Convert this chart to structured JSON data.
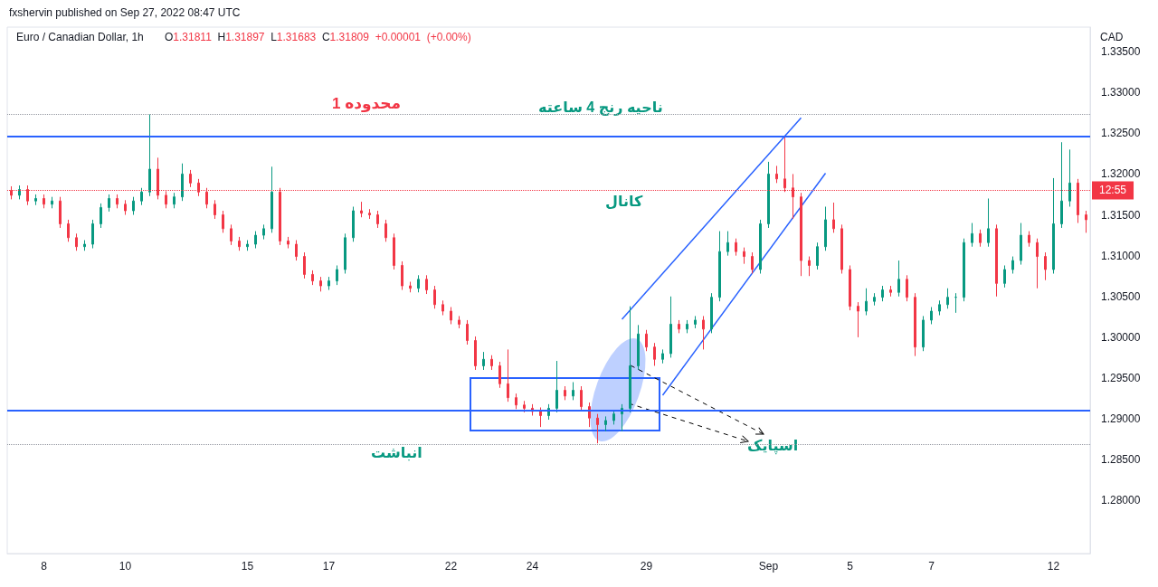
{
  "chart_data": {
    "type": "candlestick",
    "title": "Euro / Canadian Dollar, 1h",
    "subtitle": "O1.31811 H1.31897 L1.31683 C1.31809 +0.00001 (+0.00%)",
    "ylabel": "CAD",
    "annotations": [
      "fxshervin published on Sep 27, 2022 08:47 UTC",
      "محدوده 1",
      "ناحیه رنج 4 ساعته",
      "کانال",
      "انباشت",
      "اسپایک",
      "12:55"
    ],
    "categories": [
      null,
      null,
      null,
      null,
      "8",
      null,
      null,
      null,
      null,
      null,
      null,
      null,
      null,
      null,
      "10",
      null,
      null,
      null,
      null,
      null,
      null,
      null,
      null,
      null,
      null,
      null,
      null,
      null,
      null,
      "15",
      null,
      null,
      null,
      null,
      null,
      null,
      null,
      null,
      null,
      "17",
      null,
      null,
      null,
      null,
      null,
      null,
      null,
      null,
      null,
      null,
      null,
      null,
      null,
      null,
      "22",
      null,
      null,
      null,
      null,
      null,
      null,
      null,
      null,
      null,
      "24",
      null,
      null,
      null,
      null,
      null,
      null,
      null,
      null,
      null,
      null,
      null,
      null,
      null,
      "29",
      null,
      null,
      null,
      null,
      null,
      null,
      null,
      null,
      null,
      null,
      null,
      null,
      null,
      null,
      "Sep",
      null,
      null,
      null,
      null,
      null,
      null,
      null,
      null,
      null,
      "5",
      null,
      null,
      null,
      null,
      null,
      null,
      null,
      null,
      null,
      "7",
      null,
      null,
      null,
      null,
      null,
      null,
      null,
      null,
      null,
      null,
      null,
      null,
      null,
      null,
      "12",
      null,
      null,
      null,
      null
    ],
    "ohlc": [
      [
        1.318,
        1.3185,
        1.3169,
        1.3174
      ],
      [
        1.3174,
        1.3186,
        1.3169,
        1.3181
      ],
      [
        1.3181,
        1.3186,
        1.3162,
        1.3167
      ],
      [
        1.3167,
        1.3175,
        1.3162,
        1.317
      ],
      [
        1.317,
        1.3175,
        1.3158,
        1.3163
      ],
      [
        1.3163,
        1.3172,
        1.3158,
        1.3167
      ],
      [
        1.3167,
        1.3172,
        1.3134,
        1.3139
      ],
      [
        1.3139,
        1.3144,
        1.3117,
        1.3122
      ],
      [
        1.3122,
        1.3127,
        1.3106,
        1.3111
      ],
      [
        1.3111,
        1.3119,
        1.3106,
        1.3114
      ],
      [
        1.3114,
        1.3144,
        1.3109,
        1.3139
      ],
      [
        1.3139,
        1.3164,
        1.3134,
        1.3159
      ],
      [
        1.3159,
        1.3175,
        1.3154,
        1.317
      ],
      [
        1.317,
        1.3175,
        1.3158,
        1.3163
      ],
      [
        1.3163,
        1.3168,
        1.315,
        1.3155
      ],
      [
        1.3155,
        1.3172,
        1.315,
        1.3167
      ],
      [
        1.3167,
        1.3183,
        1.3162,
        1.3178
      ],
      [
        1.3178,
        1.3273,
        1.3173,
        1.3206
      ],
      [
        1.3206,
        1.322,
        1.3169,
        1.3174
      ],
      [
        1.3174,
        1.3179,
        1.3158,
        1.3163
      ],
      [
        1.3163,
        1.3177,
        1.3158,
        1.3172
      ],
      [
        1.3172,
        1.3213,
        1.3167,
        1.32
      ],
      [
        1.32,
        1.3205,
        1.3184,
        1.3189
      ],
      [
        1.3189,
        1.3194,
        1.3173,
        1.3178
      ],
      [
        1.3178,
        1.3183,
        1.3158,
        1.3163
      ],
      [
        1.3163,
        1.3168,
        1.3145,
        1.315
      ],
      [
        1.315,
        1.3155,
        1.3128,
        1.3133
      ],
      [
        1.3133,
        1.3138,
        1.3113,
        1.3118
      ],
      [
        1.3118,
        1.3123,
        1.3106,
        1.3111
      ],
      [
        1.3111,
        1.3119,
        1.3106,
        1.3114
      ],
      [
        1.3114,
        1.313,
        1.3109,
        1.3125
      ],
      [
        1.3125,
        1.3138,
        1.312,
        1.3133
      ],
      [
        1.3133,
        1.3209,
        1.3128,
        1.3178
      ],
      [
        1.3178,
        1.3183,
        1.3113,
        1.3118
      ],
      [
        1.3118,
        1.3123,
        1.3109,
        1.3114
      ],
      [
        1.3114,
        1.3119,
        1.3094,
        1.3099
      ],
      [
        1.3099,
        1.3104,
        1.3072,
        1.3077
      ],
      [
        1.3077,
        1.3082,
        1.3064,
        1.3069
      ],
      [
        1.3069,
        1.3074,
        1.3056,
        1.3063
      ],
      [
        1.3063,
        1.3074,
        1.3058,
        1.3069
      ],
      [
        1.3069,
        1.3088,
        1.3064,
        1.3083
      ],
      [
        1.3083,
        1.3127,
        1.3078,
        1.3122
      ],
      [
        1.3122,
        1.316,
        1.3117,
        1.3155
      ],
      [
        1.3155,
        1.3166,
        1.3147,
        1.3152
      ],
      [
        1.3152,
        1.3157,
        1.3145,
        1.315
      ],
      [
        1.315,
        1.3155,
        1.3134,
        1.3139
      ],
      [
        1.3139,
        1.3144,
        1.3117,
        1.3122
      ],
      [
        1.3122,
        1.3127,
        1.3083,
        1.3088
      ],
      [
        1.3088,
        1.3093,
        1.3058,
        1.3063
      ],
      [
        1.3063,
        1.3068,
        1.3055,
        1.306
      ],
      [
        1.306,
        1.3076,
        1.3055,
        1.3071
      ],
      [
        1.3071,
        1.3076,
        1.3053,
        1.3058
      ],
      [
        1.3058,
        1.3063,
        1.3035,
        1.304
      ],
      [
        1.304,
        1.3045,
        1.3027,
        1.3032
      ],
      [
        1.3032,
        1.3037,
        1.3016,
        1.3021
      ],
      [
        1.3021,
        1.3026,
        1.3011,
        1.3016
      ],
      [
        1.3016,
        1.3021,
        1.2991,
        1.2996
      ],
      [
        1.2996,
        1.3001,
        1.296,
        1.2965
      ],
      [
        1.2965,
        1.2982,
        1.296,
        1.2973
      ],
      [
        1.2973,
        1.2978,
        1.296,
        1.2965
      ],
      [
        1.2965,
        1.297,
        1.2938,
        1.2943
      ],
      [
        1.2943,
        1.2985,
        1.2921,
        1.2926
      ],
      [
        1.2926,
        1.2931,
        1.2912,
        1.2917
      ],
      [
        1.2917,
        1.2922,
        1.2908,
        1.2913
      ],
      [
        1.2913,
        1.2918,
        1.2904,
        1.2909
      ],
      [
        1.2909,
        1.2914,
        1.289,
        1.2904
      ],
      [
        1.2904,
        1.2918,
        1.2899,
        1.2913
      ],
      [
        1.2913,
        1.2971,
        1.2908,
        1.2935
      ],
      [
        1.2935,
        1.294,
        1.2923,
        1.2928
      ],
      [
        1.2928,
        1.2945,
        1.2923,
        1.2935
      ],
      [
        1.2935,
        1.294,
        1.291,
        1.2915
      ],
      [
        1.2915,
        1.292,
        1.289,
        1.2901
      ],
      [
        1.2901,
        1.2906,
        1.287,
        1.2893
      ],
      [
        1.2893,
        1.2903,
        1.2885,
        1.2898
      ],
      [
        1.2898,
        1.2911,
        1.2893,
        1.2906
      ],
      [
        1.2906,
        1.2918,
        1.2885,
        1.2913
      ],
      [
        1.2913,
        1.3038,
        1.2908,
        1.2965
      ],
      [
        1.2965,
        1.3015,
        1.296,
        1.3004
      ],
      [
        1.3004,
        1.3009,
        1.2983,
        1.2988
      ],
      [
        1.2988,
        1.2993,
        1.2965,
        1.2973
      ],
      [
        1.2973,
        1.2985,
        1.2968,
        1.298
      ],
      [
        1.298,
        1.305,
        1.2975,
        1.3016
      ],
      [
        1.3016,
        1.3021,
        1.3005,
        1.301
      ],
      [
        1.301,
        1.3021,
        1.3005,
        1.3016
      ],
      [
        1.3016,
        1.3026,
        1.3011,
        1.3021
      ],
      [
        1.3021,
        1.3026,
        1.2985,
        1.301
      ],
      [
        1.301,
        1.3054,
        1.3005,
        1.3049
      ],
      [
        1.3049,
        1.313,
        1.3044,
        1.3105
      ],
      [
        1.3105,
        1.313,
        1.31,
        1.3116
      ],
      [
        1.3116,
        1.3121,
        1.31,
        1.3105
      ],
      [
        1.3105,
        1.311,
        1.309,
        1.3099
      ],
      [
        1.3099,
        1.3104,
        1.3078,
        1.3083
      ],
      [
        1.3083,
        1.3144,
        1.3078,
        1.3139
      ],
      [
        1.3139,
        1.3215,
        1.3134,
        1.32
      ],
      [
        1.32,
        1.321,
        1.3189,
        1.3194
      ],
      [
        1.3194,
        1.3245,
        1.3178,
        1.3183
      ],
      [
        1.3183,
        1.32,
        1.3145,
        1.3172
      ],
      [
        1.3172,
        1.3177,
        1.3075,
        1.3094
      ],
      [
        1.3094,
        1.3099,
        1.3075,
        1.3088
      ],
      [
        1.3088,
        1.3116,
        1.3083,
        1.3111
      ],
      [
        1.3111,
        1.316,
        1.3106,
        1.3144
      ],
      [
        1.3144,
        1.3165,
        1.3128,
        1.3133
      ],
      [
        1.3133,
        1.3138,
        1.3078,
        1.3083
      ],
      [
        1.3083,
        1.3088,
        1.3033,
        1.3038
      ],
      [
        1.3038,
        1.3043,
        1.3,
        1.3032
      ],
      [
        1.3032,
        1.306,
        1.3027,
        1.3044
      ],
      [
        1.3044,
        1.3054,
        1.3039,
        1.3049
      ],
      [
        1.3049,
        1.3063,
        1.3044,
        1.3058
      ],
      [
        1.3058,
        1.3063,
        1.305,
        1.3055
      ],
      [
        1.3055,
        1.3094,
        1.305,
        1.3071
      ],
      [
        1.3071,
        1.3076,
        1.3044,
        1.3049
      ],
      [
        1.3049,
        1.3054,
        1.2977,
        1.2988
      ],
      [
        1.2988,
        1.3026,
        1.2983,
        1.3021
      ],
      [
        1.3021,
        1.3037,
        1.3016,
        1.3032
      ],
      [
        1.3032,
        1.3045,
        1.3027,
        1.304
      ],
      [
        1.304,
        1.306,
        1.3035,
        1.3049
      ],
      [
        1.3049,
        1.3054,
        1.303,
        1.3049
      ],
      [
        1.3049,
        1.3121,
        1.3044,
        1.3116
      ],
      [
        1.3116,
        1.314,
        1.3111,
        1.3127
      ],
      [
        1.3127,
        1.3132,
        1.3111,
        1.3116
      ],
      [
        1.3116,
        1.317,
        1.3111,
        1.3133
      ],
      [
        1.3133,
        1.3138,
        1.305,
        1.3066
      ],
      [
        1.3066,
        1.3088,
        1.3061,
        1.3083
      ],
      [
        1.3083,
        1.3099,
        1.3078,
        1.3094
      ],
      [
        1.3094,
        1.314,
        1.3089,
        1.3125
      ],
      [
        1.3125,
        1.313,
        1.3111,
        1.3116
      ],
      [
        1.3116,
        1.3121,
        1.306,
        1.3099
      ],
      [
        1.3099,
        1.3104,
        1.307,
        1.3083
      ],
      [
        1.3083,
        1.3195,
        1.3078,
        1.3139
      ],
      [
        1.3139,
        1.3239,
        1.3134,
        1.3167
      ],
      [
        1.3167,
        1.323,
        1.316,
        1.3189
      ],
      [
        1.3189,
        1.3194,
        1.314,
        1.315
      ],
      [
        1.315,
        1.3155,
        1.3128,
        1.3144
      ]
    ],
    "series": [
      {
        "type": "line",
        "color": "#2962ff",
        "values": [
          null,
          null,
          null,
          null,
          null,
          null,
          null,
          null,
          null,
          null,
          null,
          null,
          null,
          null,
          null,
          null,
          null,
          null,
          null,
          null,
          null,
          null,
          null,
          null,
          null,
          null,
          null,
          null,
          null,
          null,
          null,
          null,
          null,
          null,
          null,
          null,
          null,
          null,
          null,
          null,
          null,
          null,
          null,
          null,
          null,
          null,
          null,
          null,
          null,
          null,
          null,
          null,
          null,
          null,
          null,
          null,
          null,
          null,
          null,
          null,
          null,
          null,
          null,
          null,
          null,
          null,
          null,
          null,
          null,
          null,
          null,
          null,
          null,
          null,
          null,
          1.3022,
          null,
          null,
          null,
          null,
          null,
          null,
          null,
          null,
          null,
          null,
          null,
          null,
          null,
          null,
          null,
          null,
          null,
          null,
          null,
          null,
          null,
          1.3269,
          null,
          null,
          null,
          null,
          null,
          null,
          null,
          null,
          null,
          null,
          null,
          null,
          null,
          null,
          null,
          null,
          null,
          null,
          null,
          null,
          null,
          null,
          null,
          null,
          null,
          null,
          null,
          null,
          null,
          null,
          null,
          null,
          null,
          null,
          null
        ]
      },
      {
        "type": "line",
        "color": "#2962ff",
        "values": [
          null,
          null,
          null,
          null,
          null,
          null,
          null,
          null,
          null,
          null,
          null,
          null,
          null,
          null,
          null,
          null,
          null,
          null,
          null,
          null,
          null,
          null,
          null,
          null,
          null,
          null,
          null,
          null,
          null,
          null,
          null,
          null,
          null,
          null,
          null,
          null,
          null,
          null,
          null,
          null,
          null,
          null,
          null,
          null,
          null,
          null,
          null,
          null,
          null,
          null,
          null,
          null,
          null,
          null,
          null,
          null,
          null,
          null,
          null,
          null,
          null,
          null,
          null,
          null,
          null,
          null,
          null,
          null,
          null,
          null,
          null,
          null,
          null,
          null,
          null,
          null,
          null,
          null,
          null,
          null,
          1.2929,
          null,
          null,
          null,
          null,
          null,
          null,
          null,
          null,
          null,
          null,
          null,
          null,
          null,
          null,
          null,
          null,
          null,
          null,
          null,
          1.3201,
          null,
          null,
          null,
          null,
          null,
          null,
          null,
          null,
          null,
          null,
          null,
          null,
          null,
          null,
          null,
          null,
          null,
          null,
          null,
          null,
          null,
          null,
          null,
          null,
          null,
          null,
          null,
          null,
          null,
          null,
          null,
          null
        ]
      }
    ],
    "ylim": [
      1.2735,
      1.338
    ],
    "yticks": [
      {
        "value": 1.28,
        "label": "1.28000"
      },
      {
        "value": 1.285,
        "label": "1.28500"
      },
      {
        "value": 1.29,
        "label": "1.29000"
      },
      {
        "value": 1.295,
        "label": "1.29500"
      },
      {
        "value": 1.3,
        "label": "1.30000"
      },
      {
        "value": 1.305,
        "label": "1.30500"
      },
      {
        "value": 1.31,
        "label": "1.31000"
      },
      {
        "value": 1.315,
        "label": "1.31500"
      },
      {
        "value": 1.32,
        "label": "1.32000"
      },
      {
        "value": 1.325,
        "label": "1.32500"
      },
      {
        "value": 1.33,
        "label": "1.33000"
      },
      {
        "value": 1.335,
        "label": "1.33500"
      }
    ],
    "ref_lines": [
      {
        "axis": "y",
        "value": 1.3246,
        "color": "#2962ff",
        "line_style": "solid",
        "label": null
      },
      {
        "axis": "y",
        "value": 1.291,
        "color": "#2962ff",
        "line_style": "solid",
        "label": null
      },
      {
        "axis": "y",
        "value": 1.3273,
        "color": "#9598a1",
        "line_style": "dotted",
        "label": null
      },
      {
        "axis": "y",
        "value": 1.2869,
        "color": "#9598a1",
        "line_style": "dotted",
        "label": null
      },
      {
        "axis": "y",
        "value": 1.318,
        "color": "#f23645",
        "line_style": "dotted",
        "label": null
      }
    ],
    "grid": false
  }
}
